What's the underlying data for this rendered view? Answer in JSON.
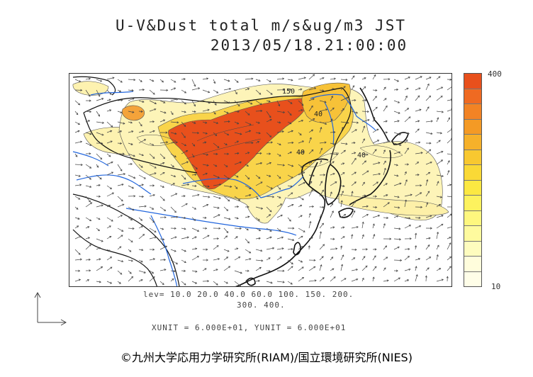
{
  "title": {
    "line1": "U-V&Dust total m/s&ug/m3 JST",
    "line2": "2013/05/18.21:00:00"
  },
  "colorbar": {
    "max_label": "400",
    "min_label": "10",
    "colors": [
      "#e8501c",
      "#ef6a22",
      "#f28324",
      "#f49a25",
      "#f6b12a",
      "#f8c830",
      "#fad936",
      "#fce842",
      "#fdf25e",
      "#fef77e",
      "#fefa9e",
      "#fefcbe",
      "#fffddc",
      "#fffee8"
    ]
  },
  "contours": {
    "labels": [
      "40",
      "40",
      "40",
      "150"
    ]
  },
  "levels": {
    "line1": "lev= 10.0 20.0 40.0 60.0 100. 150. 200.",
    "line2": "300. 400."
  },
  "units": {
    "line": "XUNIT = 6.000E+01, YUNIT = 6.000E+01"
  },
  "copyright": "©九州大学応用力学研究所(RIAM)/国立環境研究所(NIES)",
  "style_colors": {
    "high": "#e8501c",
    "mid": "#f6b12a",
    "low": "#fdf8c4",
    "river": "#2266dd",
    "coast": "#111111"
  }
}
